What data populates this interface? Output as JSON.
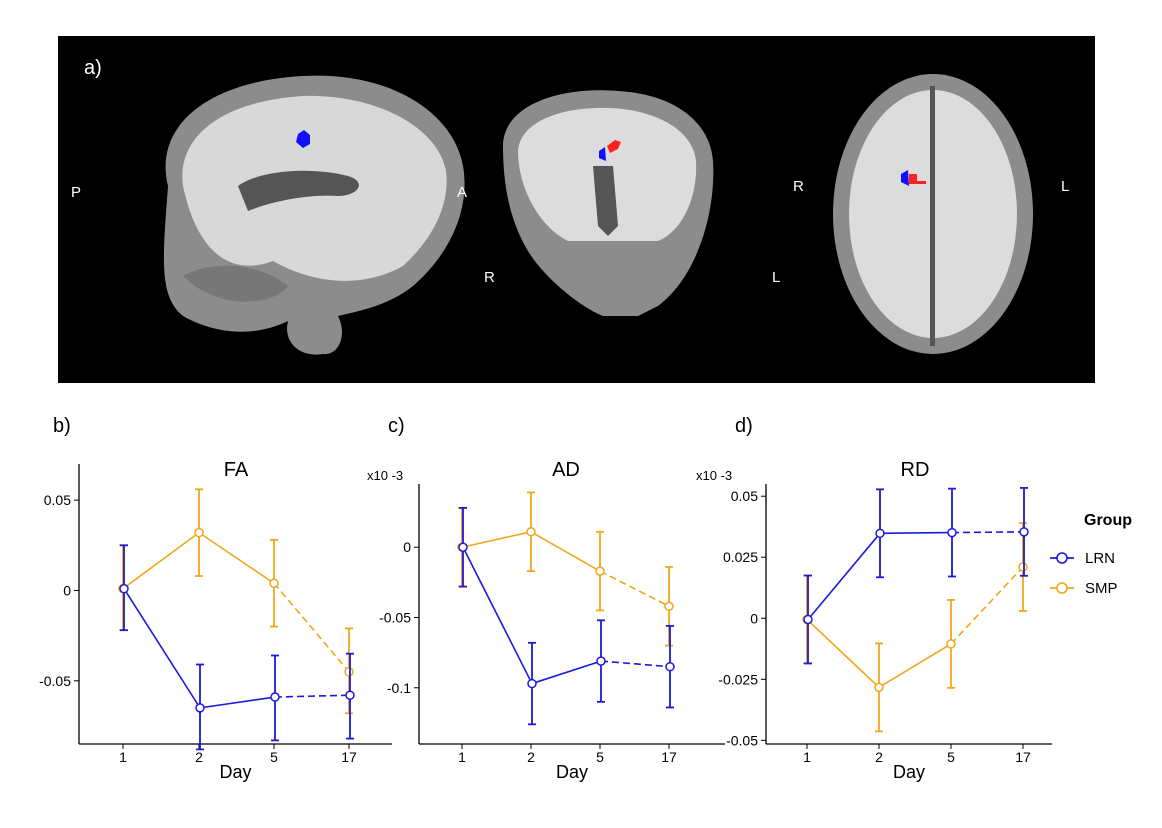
{
  "brain_panel": {
    "label": "a)",
    "sagittal": {
      "posterior": "P",
      "anterior": "A"
    },
    "coronal": {
      "right": "R",
      "left": "L"
    },
    "axial": {
      "right": "R",
      "left": "L"
    }
  },
  "legend": {
    "title": "Group",
    "entries": [
      {
        "name": "LRN",
        "color": "#1a1ad9"
      },
      {
        "name": "SMP",
        "color": "#f2a71b"
      }
    ]
  },
  "chart_data": [
    {
      "panel_label": "b)",
      "type": "line",
      "title": "FA",
      "xlabel": "Day",
      "ylabel": "",
      "multiplier": "",
      "categories": [
        "1",
        "2",
        "5",
        "17"
      ],
      "ylim": [
        -0.085,
        0.07
      ],
      "yticks": [
        0.05,
        0,
        -0.05
      ],
      "ytick_labels": [
        "0.05",
        "0",
        "-0.05"
      ],
      "series": [
        {
          "name": "LRN",
          "color": "#1a1ad9",
          "values": [
            0.001,
            -0.065,
            -0.059,
            -0.058
          ],
          "err_low": [
            -0.022,
            -0.088,
            -0.083,
            -0.082
          ],
          "err_high": [
            0.025,
            -0.041,
            -0.036,
            -0.035
          ]
        },
        {
          "name": "SMP",
          "color": "#f2a71b",
          "values": [
            0.001,
            0.032,
            0.004,
            -0.045
          ],
          "err_low": [
            -0.022,
            0.008,
            -0.02,
            -0.068
          ],
          "err_high": [
            0.025,
            0.056,
            0.028,
            -0.021
          ]
        }
      ]
    },
    {
      "panel_label": "c)",
      "type": "line",
      "title": "AD",
      "xlabel": "Day",
      "ylabel": "",
      "multiplier": "x10 -3",
      "categories": [
        "1",
        "2",
        "5",
        "17"
      ],
      "ylim": [
        -0.14,
        0.045
      ],
      "yticks": [
        0,
        -0.05,
        -0.1
      ],
      "ytick_labels": [
        "0",
        "-0.05",
        "-0.1"
      ],
      "series": [
        {
          "name": "LRN",
          "color": "#1a1ad9",
          "values": [
            0,
            -0.097,
            -0.081,
            -0.085
          ],
          "err_low": [
            -0.028,
            -0.126,
            -0.11,
            -0.114
          ],
          "err_high": [
            0.028,
            -0.068,
            -0.052,
            -0.056
          ]
        },
        {
          "name": "SMP",
          "color": "#f2a71b",
          "values": [
            0,
            0.011,
            -0.017,
            -0.042
          ],
          "err_low": [
            -0.028,
            -0.017,
            -0.045,
            -0.07
          ],
          "err_high": [
            0.028,
            0.039,
            0.011,
            -0.014
          ]
        }
      ]
    },
    {
      "panel_label": "d)",
      "type": "line",
      "title": "RD",
      "xlabel": "Day",
      "ylabel": "",
      "multiplier": "x10 -3",
      "categories": [
        "1",
        "2",
        "5",
        "17"
      ],
      "ylim": [
        -0.0515,
        0.055
      ],
      "yticks": [
        0.05,
        0.025,
        0,
        -0.025,
        -0.05
      ],
      "ytick_labels": [
        "0.05",
        "0.025",
        "0",
        "-0.025",
        "-0.05"
      ],
      "series": [
        {
          "name": "LRN",
          "color": "#1a1ad9",
          "values": [
            -0.0005,
            0.0348,
            0.0351,
            0.0354
          ],
          "err_low": [
            -0.0185,
            0.0168,
            0.0171,
            0.0174
          ],
          "err_high": [
            0.0175,
            0.0528,
            0.0531,
            0.0534
          ]
        },
        {
          "name": "SMP",
          "color": "#f2a71b",
          "values": [
            -0.0005,
            -0.0283,
            -0.0105,
            0.021
          ],
          "err_low": [
            -0.0185,
            -0.0463,
            -0.0285,
            0.003
          ],
          "err_high": [
            0.0175,
            -0.0103,
            0.0075,
            0.039
          ]
        }
      ]
    }
  ]
}
